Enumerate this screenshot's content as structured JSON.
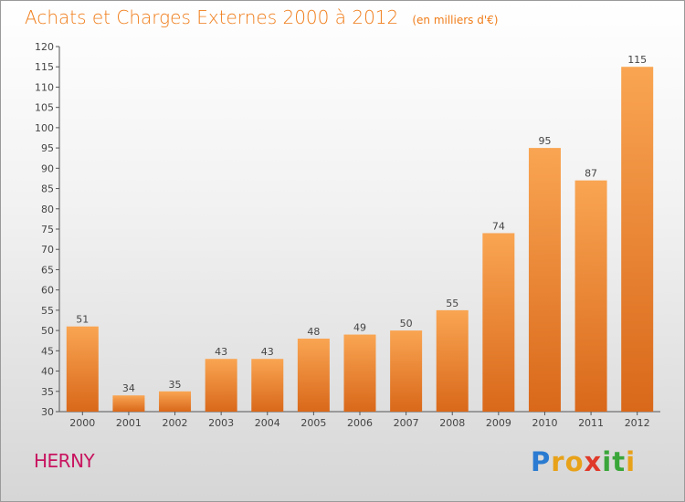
{
  "chart_data": {
    "type": "bar",
    "title": "Achats et Charges Externes 2000 à 2012",
    "unit": "(en milliers d'€)",
    "categories": [
      "2000",
      "2001",
      "2002",
      "2003",
      "2004",
      "2005",
      "2006",
      "2007",
      "2008",
      "2009",
      "2010",
      "2011",
      "2012"
    ],
    "values": [
      51,
      34,
      35,
      43,
      43,
      48,
      49,
      50,
      55,
      74,
      95,
      87,
      115
    ],
    "ylim": [
      30,
      120
    ],
    "yticks": [
      30,
      35,
      40,
      45,
      50,
      55,
      60,
      65,
      70,
      75,
      80,
      85,
      90,
      95,
      100,
      105,
      110,
      115,
      120
    ],
    "grid": false,
    "bar_color": "#f28c2a",
    "text_color": "#f07d1a"
  },
  "footer": {
    "commune": "HERNY",
    "logo_letters": [
      {
        "ch": "P",
        "color": "#2a7bd1"
      },
      {
        "ch": "r",
        "color": "#e8a21a"
      },
      {
        "ch": "o",
        "color": "#e8a21a"
      },
      {
        "ch": "x",
        "color": "#e03a2a"
      },
      {
        "ch": "i",
        "color": "#3aa63a"
      },
      {
        "ch": "t",
        "color": "#3aa63a"
      },
      {
        "ch": "i",
        "color": "#e8a21a"
      }
    ]
  }
}
